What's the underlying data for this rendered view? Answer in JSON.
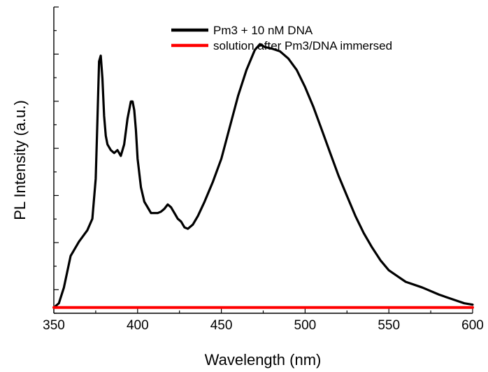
{
  "chart_data": {
    "type": "line",
    "xlabel": "Wavelength (nm)",
    "ylabel": "PL Intensity (a.u.)",
    "xlim": [
      350,
      600
    ],
    "ylim": [
      -0.02,
      1.05
    ],
    "x_ticks": [
      "350",
      "400",
      "450",
      "500",
      "550",
      "600"
    ],
    "y_labels_shown": false,
    "grid": false,
    "legend_position": "top-right",
    "series": [
      {
        "name": "Pm3 + 10 nM DNA",
        "color": "#000000",
        "x": [
          351,
          353,
          356,
          360,
          365,
          370,
          373,
          375,
          376,
          377,
          378,
          379,
          380,
          381,
          382,
          384,
          386,
          388,
          390,
          392,
          394,
          396,
          397,
          398,
          399,
          400,
          402,
          404,
          406,
          408,
          410,
          412,
          414,
          416,
          418,
          420,
          422,
          424,
          426,
          428,
          430,
          433,
          436,
          440,
          445,
          450,
          455,
          460,
          465,
          470,
          473,
          476,
          480,
          485,
          490,
          495,
          500,
          505,
          510,
          515,
          520,
          525,
          530,
          535,
          540,
          545,
          550,
          555,
          560,
          570,
          580,
          590,
          595,
          600
        ],
        "y": [
          0.005,
          0.015,
          0.07,
          0.18,
          0.23,
          0.27,
          0.31,
          0.45,
          0.65,
          0.86,
          0.88,
          0.8,
          0.67,
          0.6,
          0.57,
          0.55,
          0.54,
          0.55,
          0.53,
          0.57,
          0.66,
          0.72,
          0.72,
          0.69,
          0.62,
          0.52,
          0.42,
          0.37,
          0.35,
          0.33,
          0.33,
          0.33,
          0.335,
          0.345,
          0.36,
          0.35,
          0.33,
          0.31,
          0.3,
          0.28,
          0.275,
          0.29,
          0.32,
          0.37,
          0.44,
          0.52,
          0.63,
          0.74,
          0.83,
          0.9,
          0.92,
          0.91,
          0.905,
          0.895,
          0.87,
          0.83,
          0.77,
          0.7,
          0.62,
          0.54,
          0.46,
          0.39,
          0.32,
          0.26,
          0.21,
          0.165,
          0.13,
          0.11,
          0.09,
          0.07,
          0.045,
          0.025,
          0.015,
          0.01
        ]
      },
      {
        "name": "solution after Pm3/DNA immersed",
        "color": "#ff0000",
        "x": [
          350,
          400,
          450,
          500,
          550,
          600
        ],
        "y": [
          0.0,
          0.0,
          0.0,
          0.0,
          0.0,
          0.0
        ]
      }
    ]
  }
}
